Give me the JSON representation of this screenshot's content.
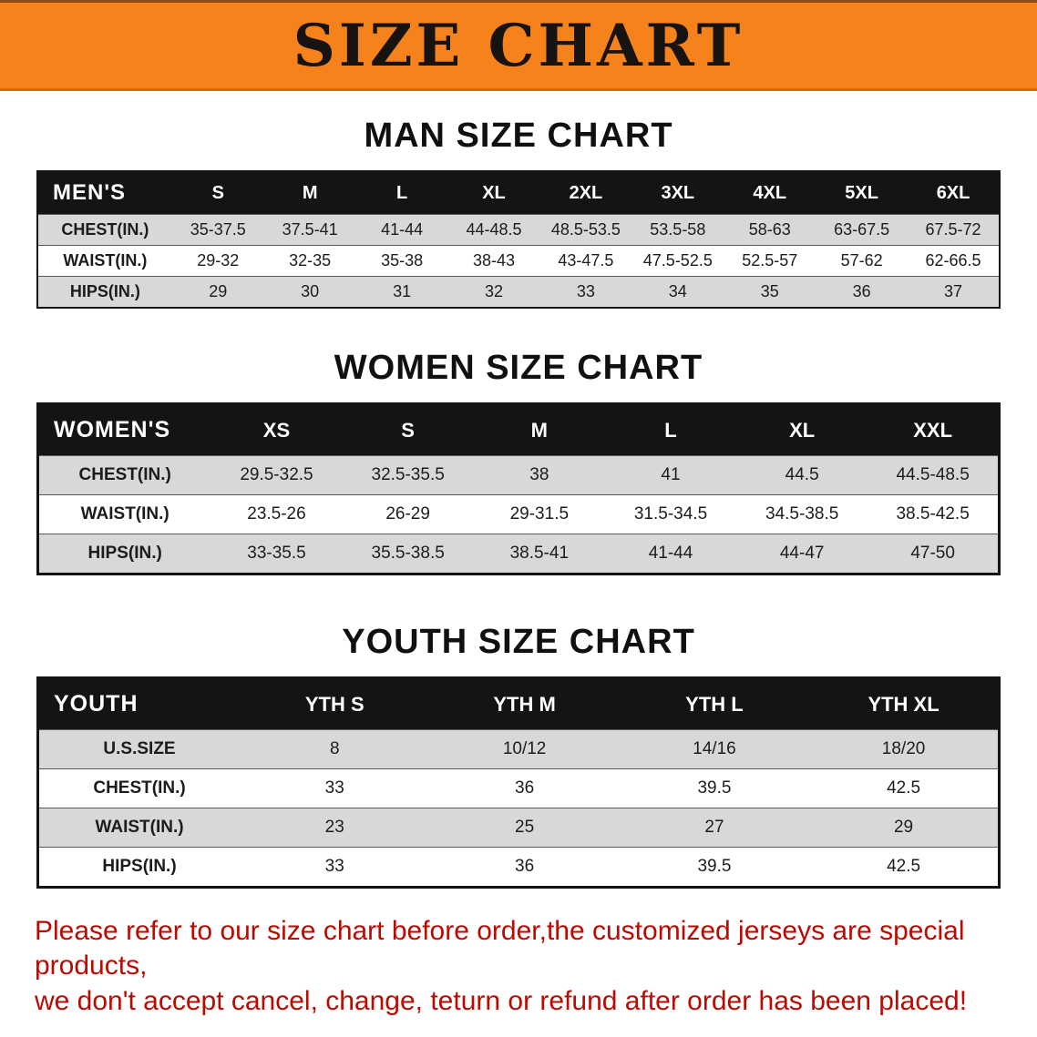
{
  "banner": {
    "title": "SIZE CHART"
  },
  "colors": {
    "banner_bg": "#f6821c",
    "header_bg": "#141414",
    "stripe": "#d8d8d8",
    "disclaimer_red": "#bb0a01"
  },
  "men": {
    "heading": "MAN SIZE CHART",
    "header": [
      "MEN'S",
      "S",
      "M",
      "L",
      "XL",
      "2XL",
      "3XL",
      "4XL",
      "5XL",
      "6XL"
    ],
    "rows": [
      [
        "CHEST(IN.)",
        "35-37.5",
        "37.5-41",
        "41-44",
        "44-48.5",
        "48.5-53.5",
        "53.5-58",
        "58-63",
        "63-67.5",
        "67.5-72"
      ],
      [
        "WAIST(IN.)",
        "29-32",
        "32-35",
        "35-38",
        "38-43",
        "43-47.5",
        "47.5-52.5",
        "52.5-57",
        "57-62",
        "62-66.5"
      ],
      [
        "HIPS(IN.)",
        "29",
        "30",
        "31",
        "32",
        "33",
        "34",
        "35",
        "36",
        "37"
      ]
    ]
  },
  "women": {
    "heading": "WOMEN SIZE CHART",
    "header": [
      "WOMEN'S",
      "XS",
      "S",
      "M",
      "L",
      "XL",
      "XXL"
    ],
    "rows": [
      [
        "CHEST(IN.)",
        "29.5-32.5",
        "32.5-35.5",
        "38",
        "41",
        "44.5",
        "44.5-48.5"
      ],
      [
        "WAIST(IN.)",
        "23.5-26",
        "26-29",
        "29-31.5",
        "31.5-34.5",
        "34.5-38.5",
        "38.5-42.5"
      ],
      [
        "HIPS(IN.)",
        "33-35.5",
        "35.5-38.5",
        "38.5-41",
        "41-44",
        "44-47",
        "47-50"
      ]
    ]
  },
  "youth": {
    "heading": "YOUTH SIZE CHART",
    "header": [
      "YOUTH",
      "YTH S",
      "YTH M",
      "YTH L",
      "YTH XL"
    ],
    "rows": [
      [
        "U.S.SIZE",
        "8",
        "10/12",
        "14/16",
        "18/20"
      ],
      [
        "CHEST(IN.)",
        "33",
        "36",
        "39.5",
        "42.5"
      ],
      [
        "WAIST(IN.)",
        "23",
        "25",
        "27",
        "29"
      ],
      [
        "HIPS(IN.)",
        "33",
        "36",
        "39.5",
        "42.5"
      ]
    ]
  },
  "disclaimer": {
    "line1": "Please refer to our size chart before order,the customized jerseys are special products,",
    "line2": "we don't accept cancel, change, teturn or refund after order has been placed!"
  }
}
